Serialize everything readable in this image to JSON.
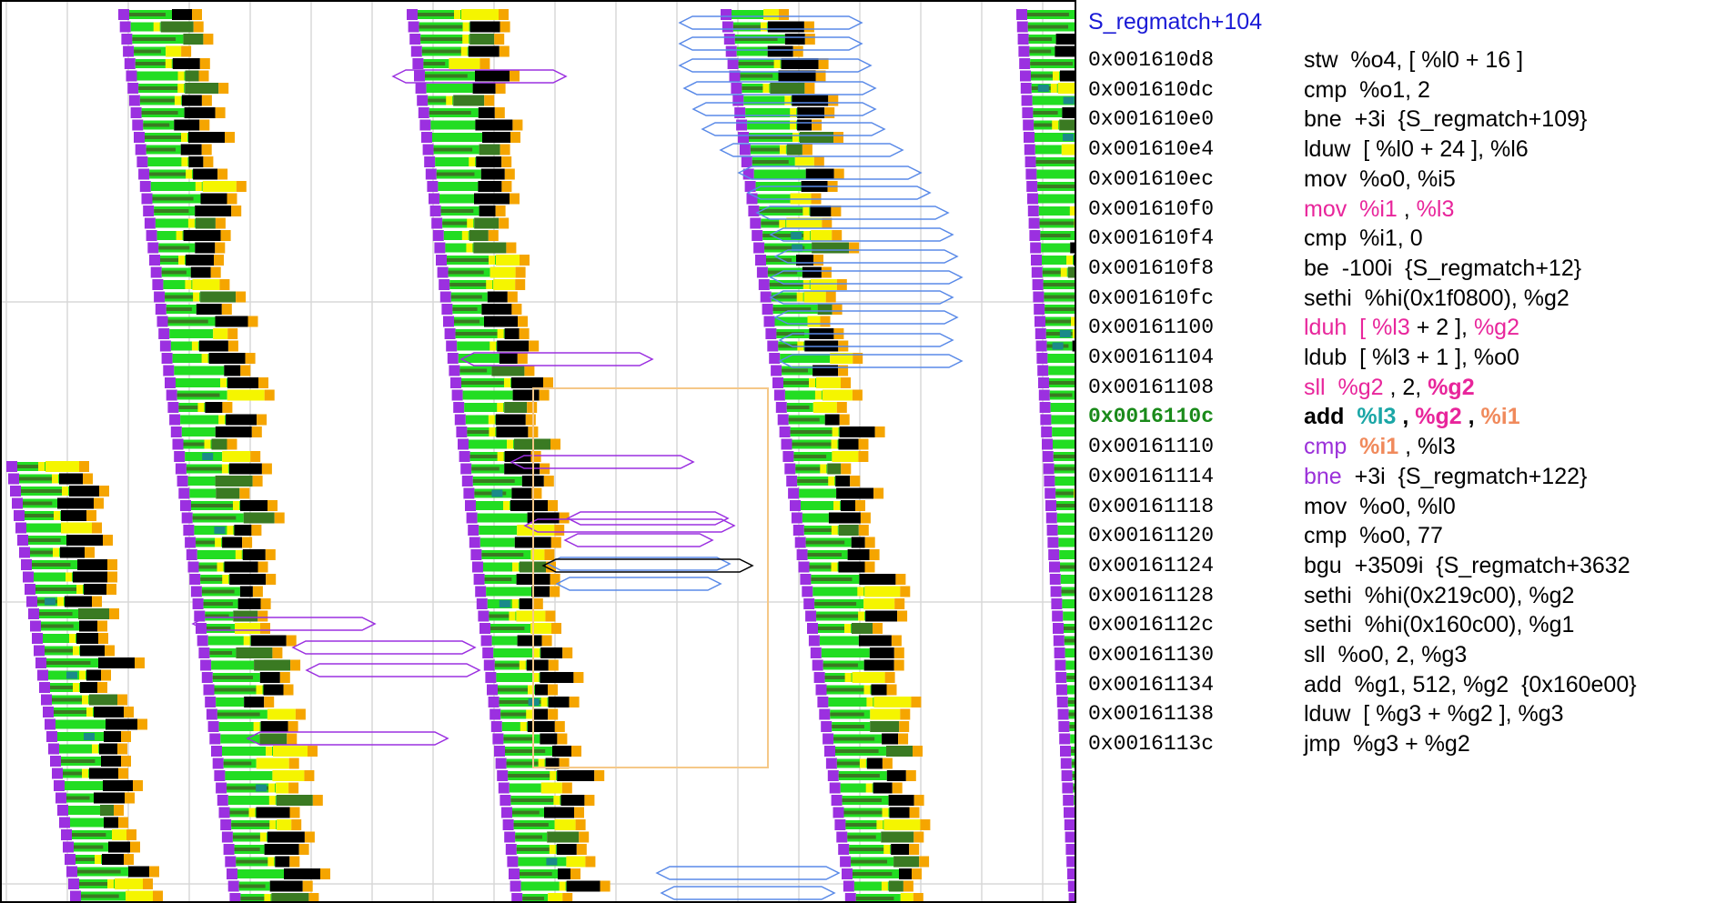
{
  "colors": {
    "header": "#1a1ad6",
    "default": "#000000",
    "magenta": "#e8259b",
    "purple": "#9b30d9",
    "teal": "#1aa6a6",
    "salmon": "#f08a5c",
    "current_addr": "#1a8a1a",
    "slot_purple": "#9b30e0",
    "slot_green": "#22dd22",
    "slot_darkgreen": "#3a7a22",
    "slot_black": "#000000",
    "slot_yellow": "#f5f500",
    "slot_orange": "#f5a500",
    "slot_teal": "#1a8a8a",
    "slot_grey": "#707070",
    "hex_purple": "#9b30e0",
    "hex_blue": "#5a8ae8",
    "hex_black": "#000000",
    "highlight_box": "#f5c888",
    "grid": "#d8d8d8"
  },
  "asm": {
    "function": "S_regmatch+104",
    "rows": [
      {
        "addr": "0x001610d8",
        "tokens": [
          {
            "t": "stw  %o4, [ %l0 + 16 ]",
            "c": "default"
          }
        ]
      },
      {
        "addr": "0x001610dc",
        "tokens": [
          {
            "t": "cmp  %o1, 2",
            "c": "default"
          }
        ]
      },
      {
        "addr": "0x001610e0",
        "tokens": [
          {
            "t": "bne  +3i  {S_regmatch+109}",
            "c": "default"
          }
        ]
      },
      {
        "addr": "0x001610e4",
        "tokens": [
          {
            "t": "lduw  [ %l0 + 24 ], %l6",
            "c": "default"
          }
        ]
      },
      {
        "addr": "0x001610ec",
        "tokens": [
          {
            "t": "mov  %o0, %i5",
            "c": "default"
          }
        ]
      },
      {
        "addr": "0x001610f0",
        "tokens": [
          {
            "t": "mov  %i1",
            "c": "magenta"
          },
          {
            "t": " , ",
            "c": "default"
          },
          {
            "t": "%l3",
            "c": "magenta"
          }
        ]
      },
      {
        "addr": "0x001610f4",
        "tokens": [
          {
            "t": "cmp  %i1, 0",
            "c": "default"
          }
        ]
      },
      {
        "addr": "0x001610f8",
        "tokens": [
          {
            "t": "be  -100i  {S_regmatch+12}",
            "c": "default"
          }
        ]
      },
      {
        "addr": "0x001610fc",
        "tokens": [
          {
            "t": "sethi  %hi(0x1f0800), %g2",
            "c": "default"
          }
        ]
      },
      {
        "addr": "0x00161100",
        "tokens": [
          {
            "t": "lduh  [ ",
            "c": "magenta"
          },
          {
            "t": "%l3",
            "c": "magenta"
          },
          {
            "t": " + 2 ], ",
            "c": "default"
          },
          {
            "t": "%g2",
            "c": "magenta"
          }
        ]
      },
      {
        "addr": "0x00161104",
        "tokens": [
          {
            "t": "ldub  [ %l3 + 1 ], %o0",
            "c": "default"
          }
        ]
      },
      {
        "addr": "0x00161108",
        "tokens": [
          {
            "t": "sll  %g2",
            "c": "magenta"
          },
          {
            "t": " , 2, ",
            "c": "default"
          },
          {
            "t": "%g2",
            "c": "magenta",
            "b": true
          }
        ]
      },
      {
        "addr": "0x0016110c",
        "current": true,
        "tokens": [
          {
            "t": "add  ",
            "c": "default",
            "b": true
          },
          {
            "t": "%l3",
            "c": "teal",
            "b": true
          },
          {
            "t": " , ",
            "c": "default",
            "b": true
          },
          {
            "t": "%g2",
            "c": "magenta",
            "b": true
          },
          {
            "t": " , ",
            "c": "default",
            "b": true
          },
          {
            "t": "%i1",
            "c": "salmon",
            "b": true
          }
        ]
      },
      {
        "addr": "0x00161110",
        "tokens": [
          {
            "t": "cmp  ",
            "c": "purple"
          },
          {
            "t": "%i1",
            "c": "salmon",
            "b": true
          },
          {
            "t": " , %l3",
            "c": "default"
          }
        ]
      },
      {
        "addr": "0x00161114",
        "tokens": [
          {
            "t": "bne",
            "c": "purple"
          },
          {
            "t": "  +3i  {S_regmatch+122}",
            "c": "default"
          }
        ]
      },
      {
        "addr": "0x00161118",
        "tokens": [
          {
            "t": "mov  %o0, %l0",
            "c": "default"
          }
        ]
      },
      {
        "addr": "0x00161120",
        "tokens": [
          {
            "t": "cmp  %o0, 77",
            "c": "default"
          }
        ]
      },
      {
        "addr": "0x00161124",
        "tokens": [
          {
            "t": "bgu  +3509i  {S_regmatch+3632",
            "c": "default"
          }
        ]
      },
      {
        "addr": "0x00161128",
        "tokens": [
          {
            "t": "sethi  %hi(0x219c00), %g2",
            "c": "default"
          }
        ]
      },
      {
        "addr": "0x0016112c",
        "tokens": [
          {
            "t": "sethi  %hi(0x160c00), %g1",
            "c": "default"
          }
        ]
      },
      {
        "addr": "0x00161130",
        "tokens": [
          {
            "t": "sll  %o0, 2, %g3",
            "c": "default"
          }
        ]
      },
      {
        "addr": "0x00161134",
        "tokens": [
          {
            "t": "add  %g1, 512, %g2  {0x160e00}",
            "c": "default"
          }
        ]
      },
      {
        "addr": "0x00161138",
        "tokens": [
          {
            "t": "lduw  [ %g3 + %g2 ], %g3",
            "c": "default"
          }
        ]
      },
      {
        "addr": "0x0016113c",
        "tokens": [
          {
            "t": "jmp  %g3 + %g2",
            "c": "default"
          }
        ]
      }
    ]
  }
}
